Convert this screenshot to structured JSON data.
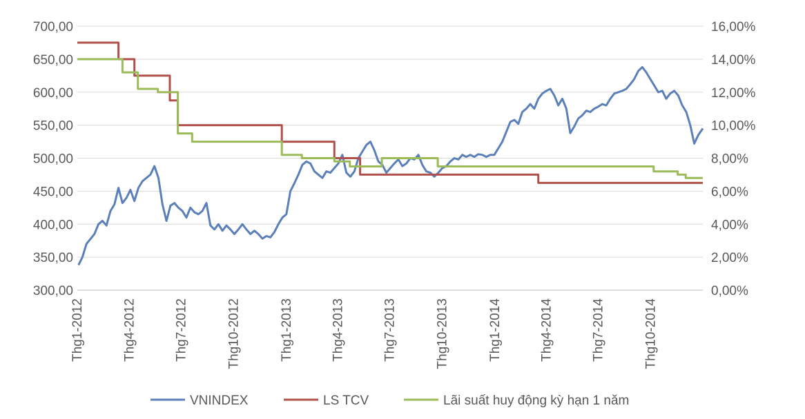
{
  "chart_data": {
    "type": "line",
    "title": "",
    "xlabel": "",
    "ylabel": "",
    "y_left": {
      "min": 300,
      "max": 700,
      "step": 50,
      "tick_labels": [
        "300,00",
        "350,00",
        "400,00",
        "450,00",
        "500,00",
        "550,00",
        "600,00",
        "650,00",
        "700,00"
      ]
    },
    "y_right": {
      "min": 0,
      "max": 16,
      "step": 2,
      "tick_labels": [
        "0,00%",
        "2,00%",
        "4,00%",
        "6,00%",
        "8,00%",
        "10,00%",
        "12,00%",
        "14,00%",
        "16,00%"
      ]
    },
    "x_range": [
      "2012-01-01",
      "2014-12-31"
    ],
    "x_tick_labels": [
      "Thg1-2012",
      "Thg4-2012",
      "Thg7-2012",
      "Thg10-2012",
      "Thg1-2013",
      "Thg4-2013",
      "Thg7-2013",
      "Thg10-2013",
      "Thg1-2014",
      "Thg4-2014",
      "Thg7-2014",
      "Thg10-2014"
    ],
    "x_tick_dates": [
      "2012-01-01",
      "2012-04-01",
      "2012-07-01",
      "2012-10-01",
      "2013-01-01",
      "2013-04-01",
      "2013-07-01",
      "2013-10-01",
      "2014-01-01",
      "2014-04-01",
      "2014-07-01",
      "2014-10-01"
    ],
    "grid": true,
    "legend_position": "bottom",
    "series": [
      {
        "name": "VNINDEX",
        "axis": "left",
        "color": "#5b7fb9",
        "points": [
          [
            "2012-01-03",
            338
          ],
          [
            "2012-01-10",
            350
          ],
          [
            "2012-01-17",
            370
          ],
          [
            "2012-01-31",
            385
          ],
          [
            "2012-02-07",
            400
          ],
          [
            "2012-02-14",
            405
          ],
          [
            "2012-02-21",
            398
          ],
          [
            "2012-02-28",
            420
          ],
          [
            "2012-03-06",
            430
          ],
          [
            "2012-03-13",
            455
          ],
          [
            "2012-03-20",
            432
          ],
          [
            "2012-03-27",
            440
          ],
          [
            "2012-04-03",
            452
          ],
          [
            "2012-04-10",
            435
          ],
          [
            "2012-04-17",
            455
          ],
          [
            "2012-04-24",
            465
          ],
          [
            "2012-05-01",
            470
          ],
          [
            "2012-05-08",
            475
          ],
          [
            "2012-05-15",
            488
          ],
          [
            "2012-05-22",
            470
          ],
          [
            "2012-05-29",
            430
          ],
          [
            "2012-06-05",
            405
          ],
          [
            "2012-06-12",
            428
          ],
          [
            "2012-06-19",
            432
          ],
          [
            "2012-06-26",
            425
          ],
          [
            "2012-07-03",
            420
          ],
          [
            "2012-07-10",
            410
          ],
          [
            "2012-07-17",
            425
          ],
          [
            "2012-07-24",
            418
          ],
          [
            "2012-07-31",
            415
          ],
          [
            "2012-08-07",
            420
          ],
          [
            "2012-08-14",
            432
          ],
          [
            "2012-08-21",
            398
          ],
          [
            "2012-08-28",
            392
          ],
          [
            "2012-09-04",
            400
          ],
          [
            "2012-09-11",
            390
          ],
          [
            "2012-09-18",
            398
          ],
          [
            "2012-09-25",
            392
          ],
          [
            "2012-10-02",
            385
          ],
          [
            "2012-10-09",
            392
          ],
          [
            "2012-10-16",
            400
          ],
          [
            "2012-10-23",
            392
          ],
          [
            "2012-10-30",
            385
          ],
          [
            "2012-11-06",
            390
          ],
          [
            "2012-11-13",
            385
          ],
          [
            "2012-11-20",
            378
          ],
          [
            "2012-11-27",
            382
          ],
          [
            "2012-12-04",
            380
          ],
          [
            "2012-12-11",
            388
          ],
          [
            "2012-12-18",
            400
          ],
          [
            "2012-12-25",
            410
          ],
          [
            "2013-01-01",
            415
          ],
          [
            "2013-01-08",
            450
          ],
          [
            "2013-01-15",
            462
          ],
          [
            "2013-01-22",
            475
          ],
          [
            "2013-01-29",
            490
          ],
          [
            "2013-02-05",
            495
          ],
          [
            "2013-02-12",
            492
          ],
          [
            "2013-02-19",
            480
          ],
          [
            "2013-02-26",
            475
          ],
          [
            "2013-03-05",
            470
          ],
          [
            "2013-03-12",
            480
          ],
          [
            "2013-03-19",
            478
          ],
          [
            "2013-03-26",
            485
          ],
          [
            "2013-04-02",
            492
          ],
          [
            "2013-04-09",
            505
          ],
          [
            "2013-04-16",
            478
          ],
          [
            "2013-04-23",
            472
          ],
          [
            "2013-04-30",
            480
          ],
          [
            "2013-05-07",
            500
          ],
          [
            "2013-05-14",
            510
          ],
          [
            "2013-05-21",
            520
          ],
          [
            "2013-05-28",
            525
          ],
          [
            "2013-06-04",
            512
          ],
          [
            "2013-06-11",
            495
          ],
          [
            "2013-06-18",
            490
          ],
          [
            "2013-06-25",
            478
          ],
          [
            "2013-07-02",
            485
          ],
          [
            "2013-07-09",
            492
          ],
          [
            "2013-07-16",
            498
          ],
          [
            "2013-07-23",
            488
          ],
          [
            "2013-07-30",
            492
          ],
          [
            "2013-08-06",
            500
          ],
          [
            "2013-08-13",
            498
          ],
          [
            "2013-08-20",
            505
          ],
          [
            "2013-08-27",
            490
          ],
          [
            "2013-09-03",
            480
          ],
          [
            "2013-09-10",
            478
          ],
          [
            "2013-09-17",
            472
          ],
          [
            "2013-09-24",
            478
          ],
          [
            "2013-10-01",
            485
          ],
          [
            "2013-10-08",
            488
          ],
          [
            "2013-10-15",
            495
          ],
          [
            "2013-10-22",
            500
          ],
          [
            "2013-10-29",
            498
          ],
          [
            "2013-11-05",
            505
          ],
          [
            "2013-11-12",
            502
          ],
          [
            "2013-11-19",
            505
          ],
          [
            "2013-11-26",
            502
          ],
          [
            "2013-12-03",
            506
          ],
          [
            "2013-12-10",
            505
          ],
          [
            "2013-12-17",
            502
          ],
          [
            "2013-12-24",
            505
          ],
          [
            "2013-12-31",
            505
          ],
          [
            "2014-01-07",
            515
          ],
          [
            "2014-01-14",
            525
          ],
          [
            "2014-01-21",
            540
          ],
          [
            "2014-01-28",
            555
          ],
          [
            "2014-02-04",
            558
          ],
          [
            "2014-02-11",
            552
          ],
          [
            "2014-02-18",
            570
          ],
          [
            "2014-02-25",
            575
          ],
          [
            "2014-03-04",
            582
          ],
          [
            "2014-03-11",
            575
          ],
          [
            "2014-03-18",
            590
          ],
          [
            "2014-03-25",
            598
          ],
          [
            "2014-04-01",
            602
          ],
          [
            "2014-04-08",
            605
          ],
          [
            "2014-04-15",
            595
          ],
          [
            "2014-04-22",
            580
          ],
          [
            "2014-04-29",
            590
          ],
          [
            "2014-05-06",
            575
          ],
          [
            "2014-05-13",
            538
          ],
          [
            "2014-05-20",
            548
          ],
          [
            "2014-05-27",
            560
          ],
          [
            "2014-06-03",
            565
          ],
          [
            "2014-06-10",
            572
          ],
          [
            "2014-06-17",
            570
          ],
          [
            "2014-06-24",
            575
          ],
          [
            "2014-07-01",
            578
          ],
          [
            "2014-07-08",
            582
          ],
          [
            "2014-07-15",
            580
          ],
          [
            "2014-07-22",
            590
          ],
          [
            "2014-07-29",
            598
          ],
          [
            "2014-08-05",
            600
          ],
          [
            "2014-08-12",
            602
          ],
          [
            "2014-08-19",
            605
          ],
          [
            "2014-08-26",
            612
          ],
          [
            "2014-09-02",
            620
          ],
          [
            "2014-09-09",
            632
          ],
          [
            "2014-09-16",
            638
          ],
          [
            "2014-09-23",
            630
          ],
          [
            "2014-09-30",
            620
          ],
          [
            "2014-10-07",
            610
          ],
          [
            "2014-10-14",
            600
          ],
          [
            "2014-10-21",
            602
          ],
          [
            "2014-10-28",
            590
          ],
          [
            "2014-11-04",
            598
          ],
          [
            "2014-11-11",
            602
          ],
          [
            "2014-11-18",
            595
          ],
          [
            "2014-11-25",
            580
          ],
          [
            "2014-12-02",
            570
          ],
          [
            "2014-12-09",
            550
          ],
          [
            "2014-12-16",
            522
          ],
          [
            "2014-12-23",
            535
          ],
          [
            "2014-12-31",
            545
          ]
        ]
      },
      {
        "name": "LS TCV",
        "axis": "right",
        "color": "#b0504b",
        "step": true,
        "points": [
          [
            "2012-01-01",
            15
          ],
          [
            "2012-03-13",
            14
          ],
          [
            "2012-04-10",
            13
          ],
          [
            "2012-06-11",
            11.5
          ],
          [
            "2012-06-25",
            10
          ],
          [
            "2012-12-24",
            9
          ],
          [
            "2013-03-26",
            8
          ],
          [
            "2013-05-10",
            7
          ],
          [
            "2014-03-18",
            6.5
          ],
          [
            "2014-12-31",
            6.5
          ]
        ]
      },
      {
        "name": "Lãi suất huy động kỳ hạn 1 năm",
        "axis": "right",
        "color": "#9bbb59",
        "step": true,
        "points": [
          [
            "2012-01-01",
            14
          ],
          [
            "2012-03-20",
            13.2
          ],
          [
            "2012-04-16",
            12.2
          ],
          [
            "2012-05-21",
            12
          ],
          [
            "2012-06-25",
            9.5
          ],
          [
            "2012-07-20",
            9
          ],
          [
            "2012-12-24",
            8.2
          ],
          [
            "2013-01-28",
            8
          ],
          [
            "2013-03-26",
            7.8
          ],
          [
            "2013-04-22",
            7.5
          ],
          [
            "2013-06-17",
            8
          ],
          [
            "2013-09-23",
            7.5
          ],
          [
            "2014-10-06",
            7.2
          ],
          [
            "2014-11-17",
            7
          ],
          [
            "2014-12-01",
            6.8
          ],
          [
            "2014-12-31",
            6.8
          ]
        ]
      }
    ]
  }
}
